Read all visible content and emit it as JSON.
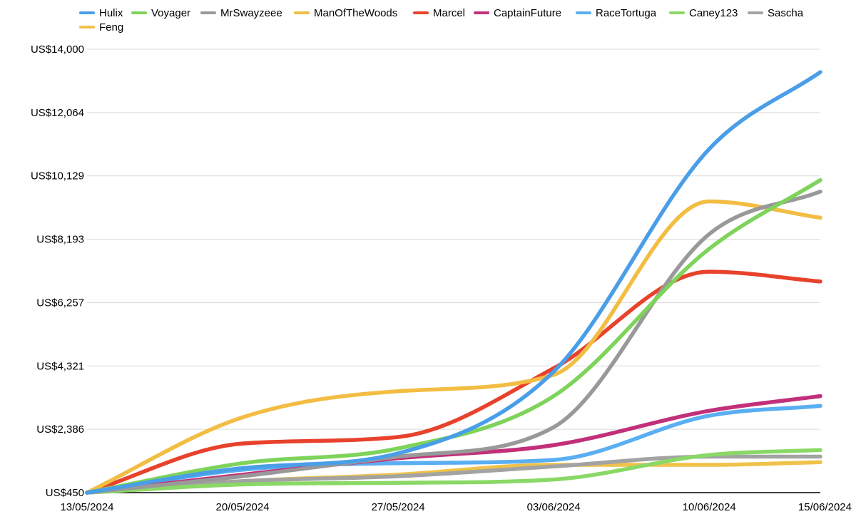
{
  "chart_data": {
    "type": "line",
    "title": "",
    "xlabel": "",
    "ylabel": "",
    "x": [
      "13/05/2024",
      "20/05/2024",
      "27/05/2024",
      "03/06/2024",
      "10/06/2024",
      "15/06/2024"
    ],
    "y_ticks": [
      450,
      2386,
      4321,
      6257,
      8193,
      10129,
      12064,
      14000
    ],
    "y_tick_labels": [
      "US$450",
      "US$2,386",
      "US$4,321",
      "US$6,257",
      "US$8,193",
      "US$10,129",
      "US$12,064",
      "US$14,000"
    ],
    "ylim": [
      450,
      14000
    ],
    "grid": "horizontal",
    "legend_position": "top",
    "series": [
      {
        "name": "Hulix",
        "color": "#4a9ee8",
        "values": [
          450,
          1200,
          1650,
          4150,
          10950,
          13300
        ]
      },
      {
        "name": "Voyager",
        "color": "#7ed35a",
        "values": [
          450,
          1350,
          1800,
          3400,
          7900,
          10000
        ]
      },
      {
        "name": "MrSwayzeee",
        "color": "#999999",
        "values": [
          450,
          950,
          1550,
          2450,
          8350,
          9650
        ]
      },
      {
        "name": "ManOfTheWoods",
        "color": "#f2bd42",
        "values": [
          450,
          2750,
          3550,
          4050,
          9350,
          8850
        ]
      },
      {
        "name": "Marcel",
        "color": "#e8422c",
        "values": [
          450,
          1950,
          2150,
          4250,
          7200,
          6900
        ]
      },
      {
        "name": "CaptainFuture",
        "color": "#c2307a",
        "values": [
          450,
          1000,
          1500,
          1900,
          2950,
          3400
        ]
      },
      {
        "name": "RaceTortuga",
        "color": "#5aaef2",
        "values": [
          450,
          1150,
          1350,
          1450,
          2800,
          3100
        ]
      },
      {
        "name": "Caney123",
        "color": "#8ad866",
        "values": [
          450,
          700,
          750,
          850,
          1600,
          1750
        ]
      },
      {
        "name": "Sascha",
        "color": "#a3a3a3",
        "values": [
          450,
          800,
          950,
          1250,
          1550,
          1550
        ]
      },
      {
        "name": "Feng",
        "color": "#f0c24a",
        "values": [
          450,
          800,
          1000,
          1300,
          1300,
          1380
        ]
      }
    ]
  }
}
